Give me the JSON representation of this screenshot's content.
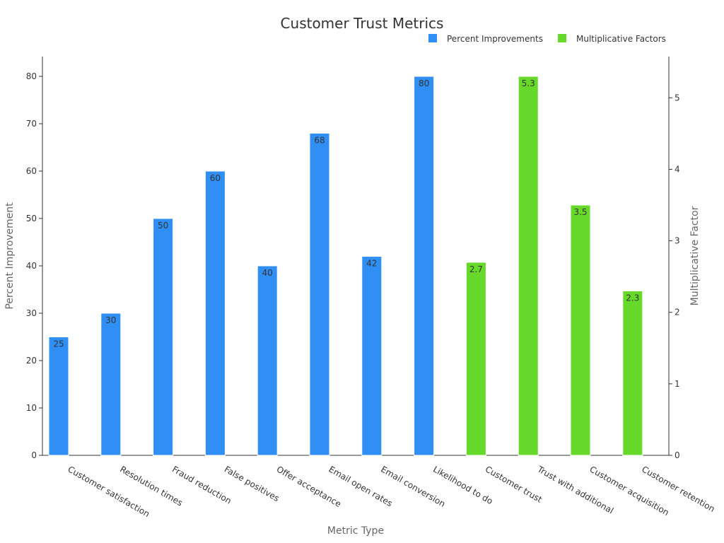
{
  "chart_data": {
    "type": "bar",
    "title": "Customer Trust Metrics",
    "xlabel": "Metric Type",
    "ylabel": "Percent Improvement",
    "y2label": "Multiplicative Factor",
    "ylim": [
      0,
      80
    ],
    "y2lim": [
      0,
      5.3
    ],
    "yticks": [
      0,
      10,
      20,
      30,
      40,
      50,
      60,
      70,
      80
    ],
    "y2ticks": [
      0,
      1,
      2,
      3,
      4,
      5
    ],
    "legend_position": "top-right",
    "grid": false,
    "categories": [
      "Customer satisfaction",
      "Resolution times",
      "Fraud reduction",
      "False positives",
      "Offer acceptance",
      "Email open rates",
      "Email conversion",
      "Likelihood to do",
      "Customer trust",
      "Trust with additional",
      "Customer acquisition",
      "Customer retention"
    ],
    "series": [
      {
        "name": "Percent Improvements",
        "axis": "left",
        "color": "#2f8ff5",
        "values": [
          25,
          30,
          50,
          60,
          40,
          68,
          42,
          80,
          null,
          null,
          null,
          null
        ]
      },
      {
        "name": "Multiplicative Factors",
        "axis": "right",
        "color": "#66d92a",
        "values": [
          null,
          null,
          null,
          null,
          null,
          null,
          null,
          null,
          2.7,
          5.3,
          3.5,
          2.3
        ]
      }
    ]
  }
}
